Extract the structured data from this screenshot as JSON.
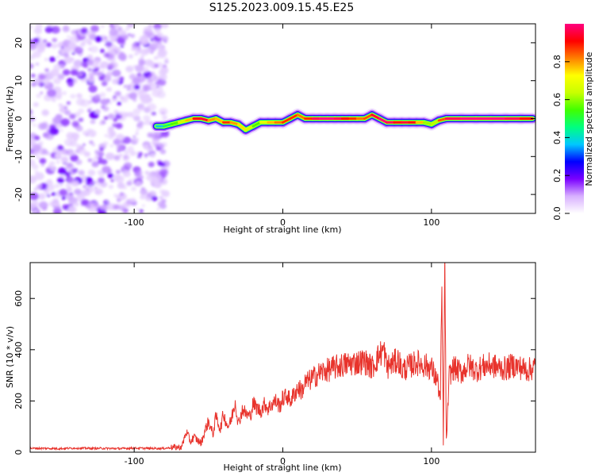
{
  "figure": {
    "title": "S125.2023.009.15.45.E25"
  },
  "chart_data": [
    {
      "type": "heatmap",
      "title": "S125.2023.009.15.45.E25",
      "xlabel": "Height of straight line (km)",
      "ylabel": "Frequency (Hz)",
      "xlim": [
        -170,
        170
      ],
      "ylim": [
        -25,
        25
      ],
      "x_ticks": [
        -100,
        0,
        100
      ],
      "x_tick_labels": [
        "-100",
        "0",
        "100"
      ],
      "y_ticks": [
        -20,
        -10,
        0,
        10,
        20
      ],
      "y_tick_labels": [
        "-20",
        "-10",
        "0",
        "10",
        "20"
      ],
      "noise_region_x": [
        -170,
        -78
      ],
      "ridge_x": [
        -85,
        -80,
        -75,
        -70,
        -65,
        -60,
        -55,
        -50,
        -45,
        -40,
        -35,
        -30,
        -25,
        -20,
        -15,
        -10,
        -5,
        0,
        5,
        10,
        15,
        20,
        25,
        30,
        35,
        40,
        45,
        50,
        55,
        60,
        65,
        70,
        75,
        80,
        85,
        90,
        95,
        100,
        105,
        110,
        120,
        130,
        140,
        150,
        160,
        168
      ],
      "ridge_freq": [
        -2,
        -2,
        -1.5,
        -1,
        -0.5,
        0,
        0,
        -0.5,
        0,
        -1,
        -1,
        -1.5,
        -3,
        -2,
        -1,
        -1,
        -1,
        -1,
        0,
        1,
        0,
        0,
        0,
        0,
        0,
        0,
        0,
        0,
        0,
        1,
        0,
        -1,
        -1,
        -1,
        -1,
        -1,
        -1,
        -1.5,
        -0.5,
        0,
        0,
        0,
        0,
        0,
        0,
        0
      ],
      "ridge_amplitude": [
        0.3,
        0.45,
        0.5,
        0.6,
        0.7,
        0.85,
        1.0,
        0.9,
        0.7,
        0.85,
        0.9,
        0.7,
        0.8,
        0.5,
        0.6,
        0.75,
        0.8,
        0.85,
        0.9,
        0.85,
        0.8,
        0.95,
        1.0,
        1.0,
        1.0,
        0.95,
        0.9,
        0.85,
        0.8,
        0.9,
        1.0,
        1.0,
        0.95,
        0.9,
        1.0,
        0.85,
        0.7,
        0.5,
        0.75,
        0.95,
        1.0,
        1.0,
        1.0,
        1.0,
        0.95,
        0.9
      ],
      "colorbar": {
        "label": "Normalized spectral amplitude",
        "range": [
          0,
          1
        ],
        "ticks": [
          0,
          0.2,
          0.4,
          0.6,
          0.8
        ],
        "tick_labels": [
          "0.0",
          "0.2",
          "0.4",
          "0.6",
          "0.8"
        ],
        "colors": [
          "#ffffff",
          "#d8b0ff",
          "#7a00ff",
          "#0000ff",
          "#00c8ff",
          "#00ff80",
          "#40ff00",
          "#c8ff00",
          "#ffff00",
          "#ff8000",
          "#ff0000",
          "#ff0080"
        ]
      },
      "grid": false
    },
    {
      "type": "line",
      "xlabel": "Height of straight line (km)",
      "ylabel": "SNR (10 * v/v)",
      "xlim": [
        -170,
        170
      ],
      "ylim": [
        0,
        740
      ],
      "x_ticks": [
        -100,
        0,
        100
      ],
      "x_tick_labels": [
        "-100",
        "0",
        "100"
      ],
      "y_ticks": [
        0,
        200,
        400,
        600
      ],
      "y_tick_labels": [
        "0",
        "200",
        "400",
        "600"
      ],
      "line_color": "#e8332c",
      "grid": false,
      "series": [
        {
          "x": [
            -170,
            -160,
            -150,
            -140,
            -130,
            -120,
            -110,
            -100,
            -90,
            -80,
            -75,
            -68,
            -65,
            -62,
            -60,
            -55,
            -52,
            -50,
            -47,
            -45,
            -42,
            -40,
            -37,
            -35,
            -32,
            -30,
            -27,
            -25,
            -22,
            -20,
            -17,
            -15,
            -12,
            -10,
            -7,
            -5,
            -2,
            0,
            3,
            5,
            8,
            10,
            13,
            15,
            18,
            20,
            25,
            30,
            35,
            40,
            45,
            50,
            55,
            60,
            65,
            68,
            70,
            72,
            75,
            78,
            80,
            85,
            90,
            95,
            100,
            102,
            104,
            106,
            107,
            108,
            109,
            110,
            112,
            115,
            120,
            125,
            130,
            135,
            140,
            145,
            150,
            155,
            160,
            165,
            170
          ],
          "y": [
            15,
            15,
            14,
            16,
            15,
            15,
            14,
            16,
            15,
            15,
            18,
            20,
            80,
            40,
            60,
            35,
            90,
            120,
            70,
            140,
            90,
            150,
            100,
            120,
            200,
            110,
            170,
            150,
            140,
            190,
            170,
            160,
            190,
            170,
            190,
            200,
            180,
            210,
            220,
            200,
            230,
            250,
            240,
            270,
            280,
            290,
            310,
            320,
            330,
            340,
            345,
            350,
            355,
            330,
            380,
            400,
            330,
            340,
            350,
            360,
            320,
            335,
            350,
            340,
            330,
            300,
            280,
            200,
            640,
            40,
            740,
            40,
            300,
            330,
            310,
            340,
            320,
            335,
            340,
            330,
            325,
            340,
            330,
            320,
            335
          ]
        }
      ]
    }
  ]
}
